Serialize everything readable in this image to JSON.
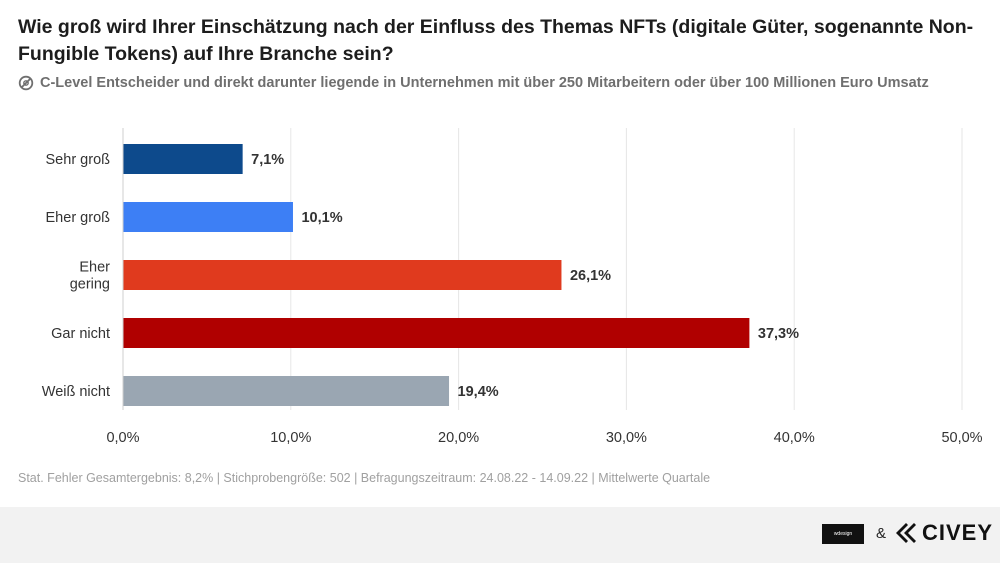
{
  "header": {
    "title": "Wie groß wird Ihrer Einschätzung nach der Einfluss des Themas NFTs (digitale Güter, sogenannte Non-Fungible Tokens) auf Ihre Branche sein?",
    "subtitle": "C-Level Entscheider und direkt darunter liegende in Unternehmen mit über 250 Mitarbeitern oder über 100 Millionen Euro Umsatz"
  },
  "chart_data": {
    "type": "bar",
    "orientation": "horizontal",
    "categories": [
      "Sehr groß",
      "Eher groß",
      "Eher gering",
      "Gar nicht",
      "Weiß nicht"
    ],
    "category_lines": [
      [
        "Sehr groß"
      ],
      [
        "Eher groß"
      ],
      [
        "Eher",
        "gering"
      ],
      [
        "Gar nicht"
      ],
      [
        "Weiß nicht"
      ]
    ],
    "values": [
      7.1,
      10.1,
      26.1,
      37.3,
      19.4
    ],
    "value_labels": [
      "7,1%",
      "10,1%",
      "26,1%",
      "37,3%",
      "19,4%"
    ],
    "colors": [
      "#0d4a8c",
      "#3d7ff5",
      "#e03a1e",
      "#b00000",
      "#9aa6b2"
    ],
    "xlim": [
      0,
      50
    ],
    "xticks": [
      0,
      10,
      20,
      30,
      40,
      50
    ],
    "xtick_labels": [
      "0,0%",
      "10,0%",
      "20,0%",
      "30,0%",
      "40,0%",
      "50,0%"
    ],
    "grid": true
  },
  "footnote": "Stat. Fehler Gesamtergebnis: 8,2% | Stichprobengröße: 502 | Befragungszeitraum: 24.08.22 - 14.09.22 | Mittelwerte Quartale",
  "footer": {
    "partner_logo_text": "wdesign",
    "ampersand": "&",
    "brand": "CIVEY"
  }
}
